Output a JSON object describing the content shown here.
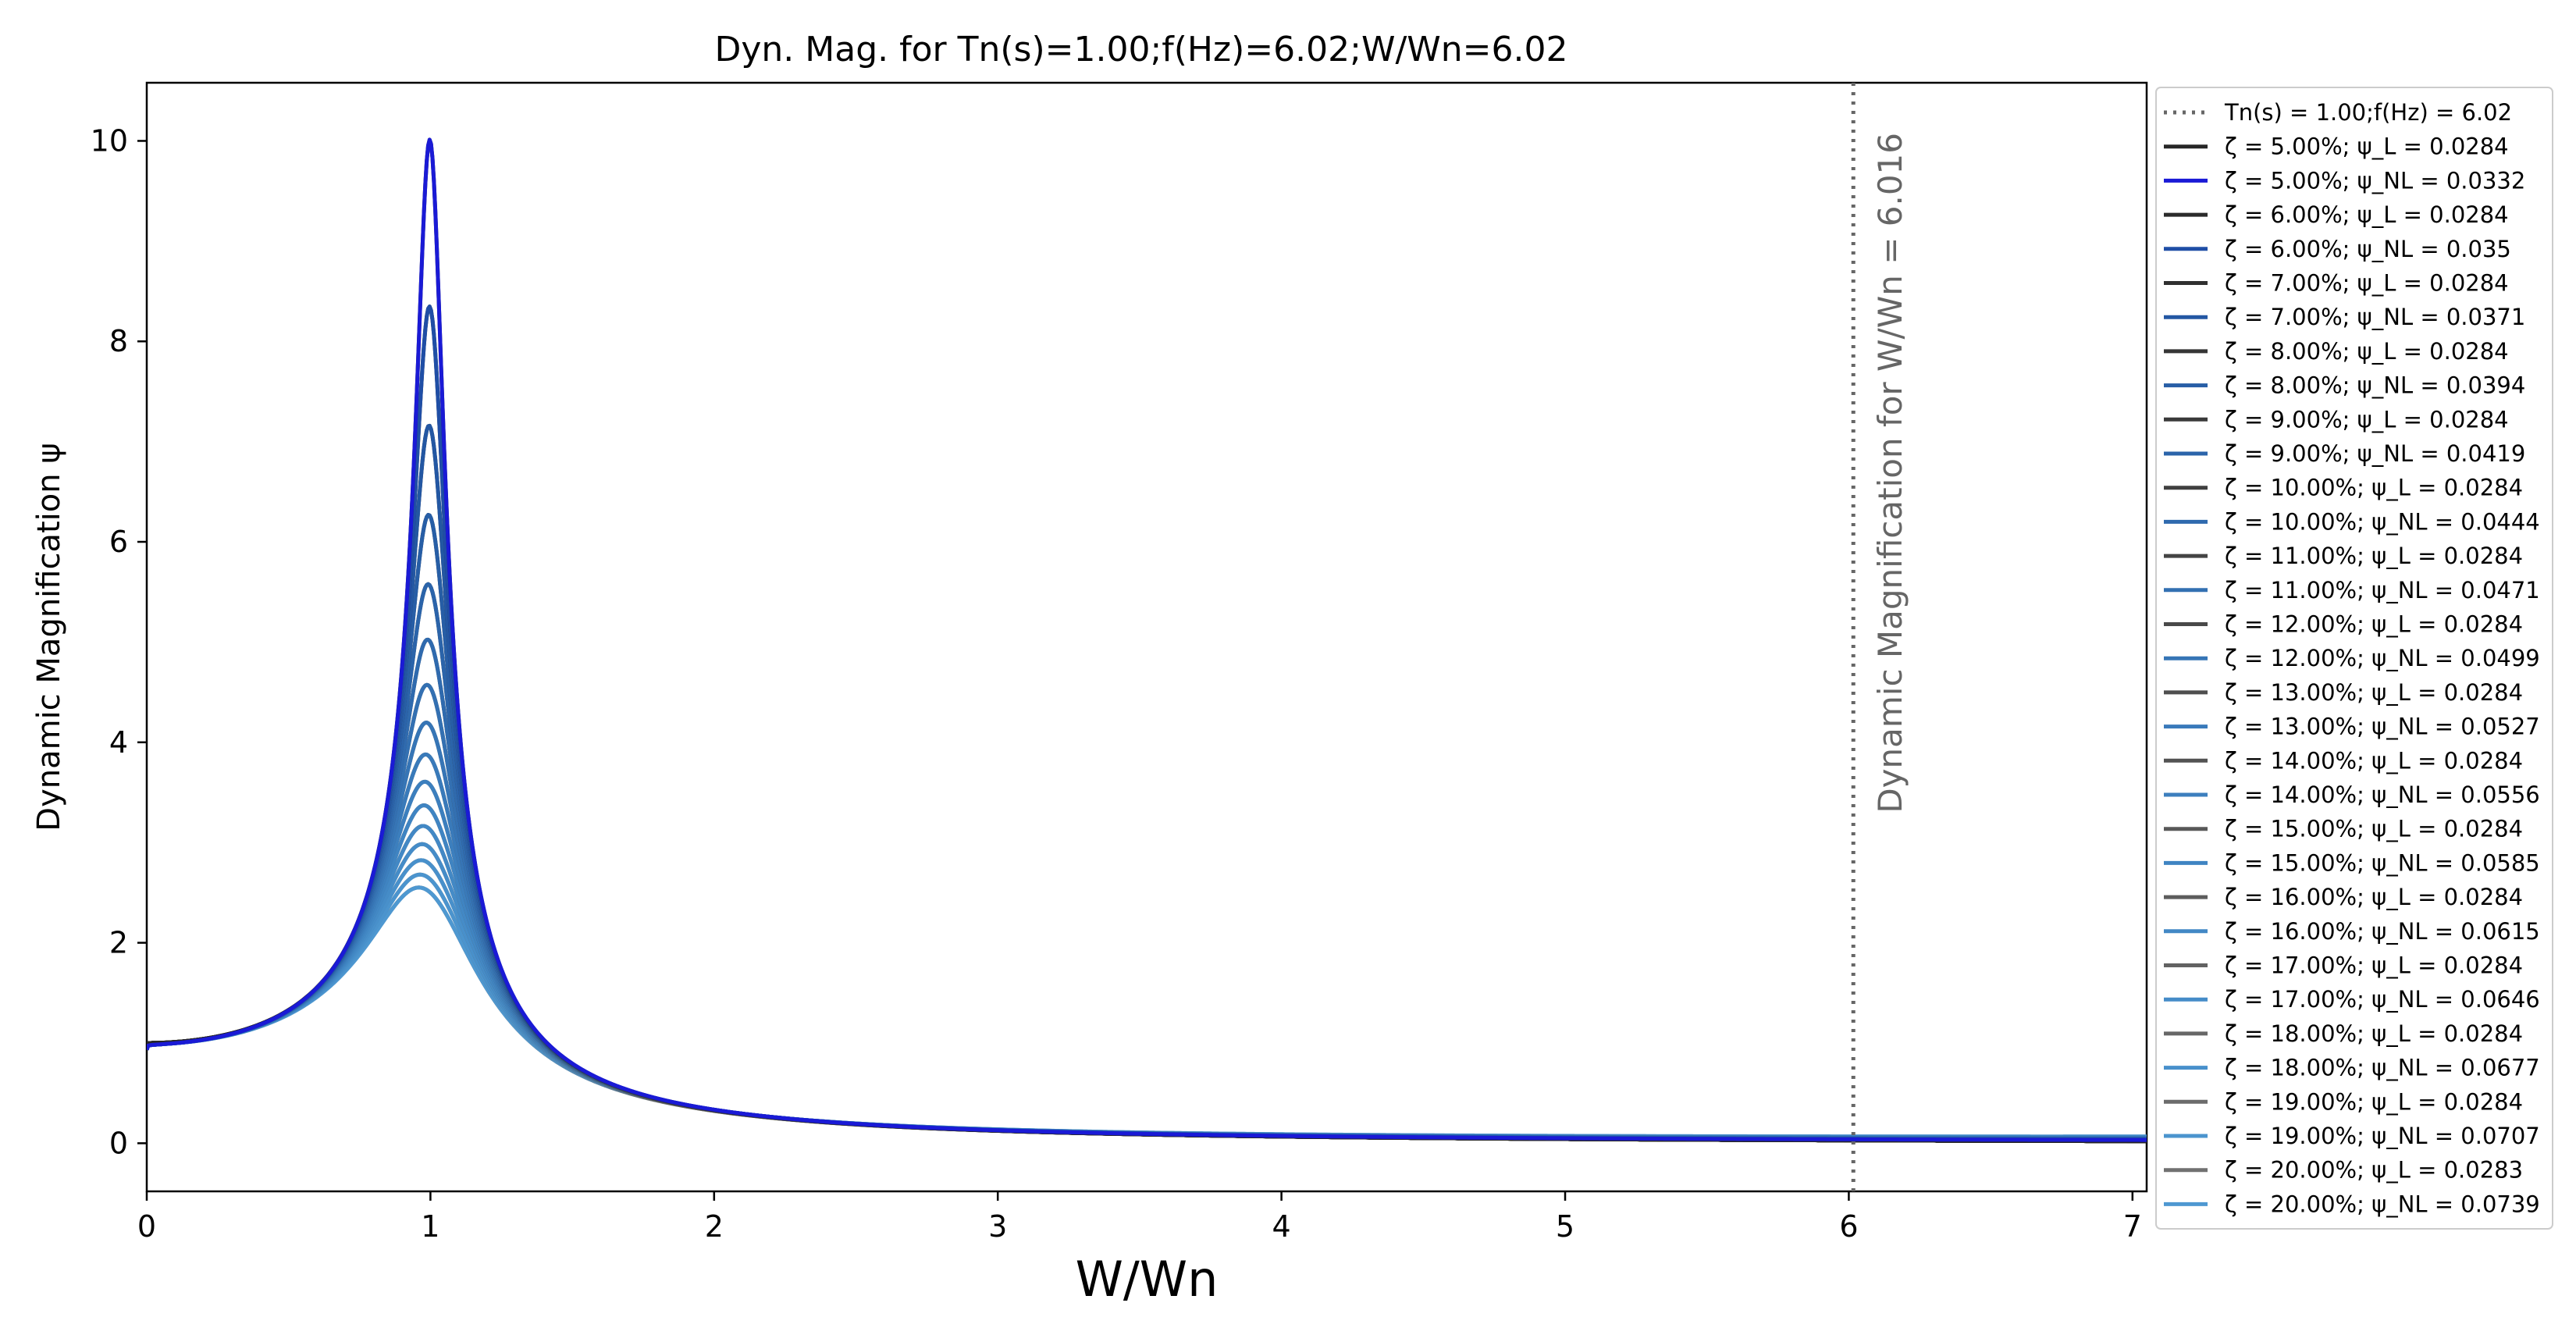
{
  "chart_data": {
    "type": "line",
    "title": "Dyn. Mag. for Tn(s)=1.00;f(Hz)=6.02;W/Wn=6.02",
    "xlabel": "W/Wn",
    "ylabel": "Dynamic Magnification ψ",
    "xlim": [
      0,
      7.05
    ],
    "ylim": [
      -0.48,
      10.58
    ],
    "xticks": [
      0,
      1,
      2,
      3,
      4,
      5,
      6,
      7
    ],
    "yticks": [
      0,
      2,
      4,
      6,
      8,
      10
    ],
    "grid": false,
    "legend_position": "outside-right",
    "reference_line": {
      "x": 6.016,
      "style": "dotted",
      "color": "#666666",
      "legend_label": "Tn(s) = 1.00;f(Hz) = 6.02",
      "annotation": "Dynamic Magnification for W/Wn = 6.016"
    },
    "series": [
      {
        "name": "ζ = 5.00%; ψ_L = 0.0284",
        "zeta": 0.05,
        "model": "linear",
        "color": "#262626"
      },
      {
        "name": "ζ = 5.00%; ψ_NL = 0.0332",
        "zeta": 0.05,
        "model": "nonlinear",
        "color": "#1a1ad6"
      },
      {
        "name": "ζ = 6.00%; ψ_L = 0.0284",
        "zeta": 0.06,
        "model": "linear",
        "color": "#2b2b2b"
      },
      {
        "name": "ζ = 6.00%; ψ_NL = 0.035",
        "zeta": 0.06,
        "model": "nonlinear",
        "color": "#1f4ea6"
      },
      {
        "name": "ζ = 7.00%; ψ_L = 0.0284",
        "zeta": 0.07,
        "model": "linear",
        "color": "#303030"
      },
      {
        "name": "ζ = 7.00%; ψ_NL = 0.0371",
        "zeta": 0.07,
        "model": "nonlinear",
        "color": "#2357a3"
      },
      {
        "name": "ζ = 8.00%; ψ_L = 0.0284",
        "zeta": 0.08,
        "model": "linear",
        "color": "#353535"
      },
      {
        "name": "ζ = 8.00%; ψ_NL = 0.0394",
        "zeta": 0.08,
        "model": "nonlinear",
        "color": "#275ea6"
      },
      {
        "name": "ζ = 9.00%; ψ_L = 0.0284",
        "zeta": 0.09,
        "model": "linear",
        "color": "#3a3a3a"
      },
      {
        "name": "ζ = 9.00%; ψ_NL = 0.0419",
        "zeta": 0.09,
        "model": "nonlinear",
        "color": "#2b64aa"
      },
      {
        "name": "ζ = 10.00%; ψ_L = 0.0284",
        "zeta": 0.1,
        "model": "linear",
        "color": "#3f3f3f"
      },
      {
        "name": "ζ = 10.00%; ψ_NL = 0.0444",
        "zeta": 0.1,
        "model": "nonlinear",
        "color": "#2f6aae"
      },
      {
        "name": "ζ = 11.00%; ψ_L = 0.0284",
        "zeta": 0.11,
        "model": "linear",
        "color": "#444444"
      },
      {
        "name": "ζ = 11.00%; ψ_NL = 0.0471",
        "zeta": 0.11,
        "model": "nonlinear",
        "color": "#3370b2"
      },
      {
        "name": "ζ = 12.00%; ψ_L = 0.0284",
        "zeta": 0.12,
        "model": "linear",
        "color": "#494949"
      },
      {
        "name": "ζ = 12.00%; ψ_NL = 0.0499",
        "zeta": 0.12,
        "model": "nonlinear",
        "color": "#3675b6"
      },
      {
        "name": "ζ = 13.00%; ψ_L = 0.0284",
        "zeta": 0.13,
        "model": "linear",
        "color": "#4e4e4e"
      },
      {
        "name": "ζ = 13.00%; ψ_NL = 0.0527",
        "zeta": 0.13,
        "model": "nonlinear",
        "color": "#397aba"
      },
      {
        "name": "ζ = 14.00%; ψ_L = 0.0284",
        "zeta": 0.14,
        "model": "linear",
        "color": "#535353"
      },
      {
        "name": "ζ = 14.00%; ψ_NL = 0.0556",
        "zeta": 0.14,
        "model": "nonlinear",
        "color": "#3c7fbe"
      },
      {
        "name": "ζ = 15.00%; ψ_L = 0.0284",
        "zeta": 0.15,
        "model": "linear",
        "color": "#585858"
      },
      {
        "name": "ζ = 15.00%; ψ_NL = 0.0585",
        "zeta": 0.15,
        "model": "nonlinear",
        "color": "#3f84c2"
      },
      {
        "name": "ζ = 16.00%; ψ_L = 0.0284",
        "zeta": 0.16,
        "model": "linear",
        "color": "#5d5d5d"
      },
      {
        "name": "ζ = 16.00%; ψ_NL = 0.0615",
        "zeta": 0.16,
        "model": "nonlinear",
        "color": "#4288c5"
      },
      {
        "name": "ζ = 17.00%; ψ_L = 0.0284",
        "zeta": 0.17,
        "model": "linear",
        "color": "#626262"
      },
      {
        "name": "ζ = 17.00%; ψ_NL = 0.0646",
        "zeta": 0.17,
        "model": "nonlinear",
        "color": "#458cc8"
      },
      {
        "name": "ζ = 18.00%; ψ_L = 0.0284",
        "zeta": 0.18,
        "model": "linear",
        "color": "#676767"
      },
      {
        "name": "ζ = 18.00%; ψ_NL = 0.0677",
        "zeta": 0.18,
        "model": "nonlinear",
        "color": "#4890cb"
      },
      {
        "name": "ζ = 19.00%; ψ_L = 0.0284",
        "zeta": 0.19,
        "model": "linear",
        "color": "#6c6c6c"
      },
      {
        "name": "ζ = 19.00%; ψ_NL = 0.0707",
        "zeta": 0.19,
        "model": "nonlinear",
        "color": "#4b94ce"
      },
      {
        "name": "ζ = 20.00%; ψ_L = 0.0283",
        "zeta": 0.2,
        "model": "linear",
        "color": "#717171"
      },
      {
        "name": "ζ = 20.00%; ψ_NL = 0.0739",
        "zeta": 0.2,
        "model": "nonlinear",
        "color": "#4e98d1"
      }
    ]
  }
}
